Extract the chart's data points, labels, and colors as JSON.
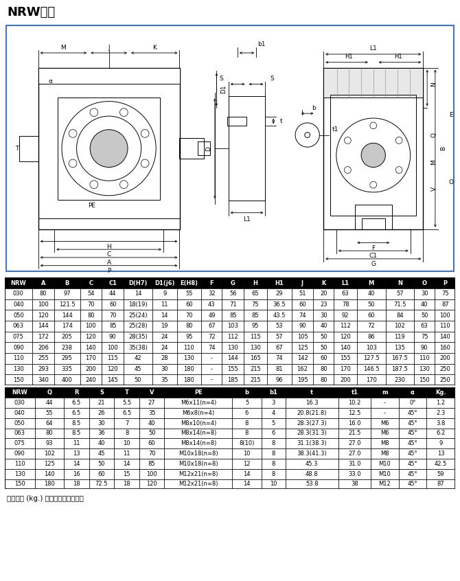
{
  "title": "NRW尺寸",
  "table1_headers": [
    "NRW",
    "A",
    "B",
    "C",
    "C1",
    "D(H7)",
    "D1(j6)",
    "E(H8)",
    "F",
    "G",
    "H",
    "H1",
    "J",
    "K",
    "L1",
    "M",
    "N",
    "O",
    "P"
  ],
  "table1_data": [
    [
      "030",
      "80",
      "97",
      "54",
      "44",
      "14",
      "9",
      "55",
      "32",
      "56",
      "65",
      "29",
      "51",
      "20",
      "63",
      "40",
      "57",
      "30",
      "75"
    ],
    [
      "040",
      "100",
      "121.5",
      "70",
      "60",
      "18(19)",
      "11",
      "60",
      "43",
      "71",
      "75",
      "36.5",
      "60",
      "23",
      "78",
      "50",
      "71.5",
      "40",
      "87"
    ],
    [
      "050",
      "120",
      "144",
      "80",
      "70",
      "25(24)",
      "14",
      "70",
      "49",
      "85",
      "85",
      "43.5",
      "74",
      "30",
      "92",
      "60",
      "84",
      "50",
      "100"
    ],
    [
      "063",
      "144",
      "174",
      "100",
      "85",
      "25(28)",
      "19",
      "80",
      "67",
      "103",
      "95",
      "53",
      "90",
      "40",
      "112",
      "72",
      "102",
      "63",
      "110"
    ],
    [
      "075",
      "172",
      "205",
      "120",
      "90",
      "28(35)",
      "24",
      "95",
      "72",
      "112",
      "115",
      "57",
      "105",
      "50",
      "120",
      "86",
      "119",
      "75",
      "140"
    ],
    [
      "090",
      "206",
      "238",
      "140",
      "100",
      "35(38)",
      "24",
      "110",
      "74",
      "130",
      "130",
      "67",
      "125",
      "50",
      "140",
      "103",
      "135",
      "90",
      "160"
    ],
    [
      "110",
      "255",
      "295",
      "170",
      "115",
      "42",
      "28",
      "130",
      "-",
      "144",
      "165",
      "74",
      "142",
      "60",
      "155",
      "127.5",
      "167.5",
      "110",
      "200"
    ],
    [
      "130",
      "293",
      "335",
      "200",
      "120",
      "45",
      "30",
      "180",
      "-",
      "155",
      "215",
      "81",
      "162",
      "80",
      "170",
      "146.5",
      "187.5",
      "130",
      "250"
    ],
    [
      "150",
      "340",
      "400",
      "240",
      "145",
      "50",
      "35",
      "180",
      "-",
      "185",
      "215",
      "96",
      "195",
      "80",
      "200",
      "170",
      "230",
      "150",
      "250"
    ]
  ],
  "table2_headers": [
    "NRW",
    "Q",
    "R",
    "S",
    "T",
    "V",
    "PE",
    "b",
    "b1",
    "t",
    "t1",
    "m",
    "α",
    "Kg."
  ],
  "table2_data": [
    [
      "030",
      "44",
      "6.5",
      "21",
      "5.5",
      "27",
      "M6x11(n=4)",
      "5",
      "3",
      "16.3",
      "10.2",
      "-",
      "0°",
      "1.2"
    ],
    [
      "040",
      "55",
      "6.5",
      "26",
      "6.5",
      "35",
      "M6x8(n=4)",
      "6",
      "4",
      "20.8(21.8)",
      "12.5",
      "-",
      "45°",
      "2.3"
    ],
    [
      "050",
      "64",
      "8.5",
      "30",
      "7",
      "40",
      "M8x10(n=4)",
      "8",
      "5",
      "28.3(27.3)",
      "16.0",
      "M6",
      "45°",
      "3.8"
    ],
    [
      "063",
      "80",
      "8.5",
      "36",
      "8",
      "50",
      "M8x14(n=8)",
      "8",
      "6",
      "28.3(31.3)",
      "21.5",
      "M6",
      "45°",
      "6.2"
    ],
    [
      "075",
      "93",
      "11",
      "40",
      "10",
      "60",
      "M8x14(n=8)",
      "8(10)",
      "8",
      "31.1(38.3)",
      "27.0",
      "M8",
      "45°",
      "9"
    ],
    [
      "090",
      "102",
      "13",
      "45",
      "11",
      "70",
      "M10x18(n=8)",
      "10",
      "8",
      "38.3(41.3)",
      "27.0",
      "M8",
      "45°",
      "13"
    ],
    [
      "110",
      "125",
      "14",
      "50",
      "14",
      "85",
      "M10x18(n=8)",
      "12",
      "8",
      "45.3",
      "31.0",
      "M10",
      "45°",
      "42.5"
    ],
    [
      "130",
      "140",
      "16",
      "60",
      "15",
      "100",
      "M12x21(n=8)",
      "14",
      "8",
      "48.8",
      "33.0",
      "M10",
      "45°",
      "59"
    ],
    [
      "150",
      "180",
      "18",
      "72.5",
      "18",
      "120",
      "M12x21(n=8)",
      "14",
      "10",
      "53.8",
      "38",
      "M12",
      "45°",
      "87"
    ]
  ],
  "note": "注：重量 (kg.) 不包含电机的重量。",
  "header_bg": "#000000",
  "border_color": "#000000",
  "diagram_border_color": "#4472C4"
}
